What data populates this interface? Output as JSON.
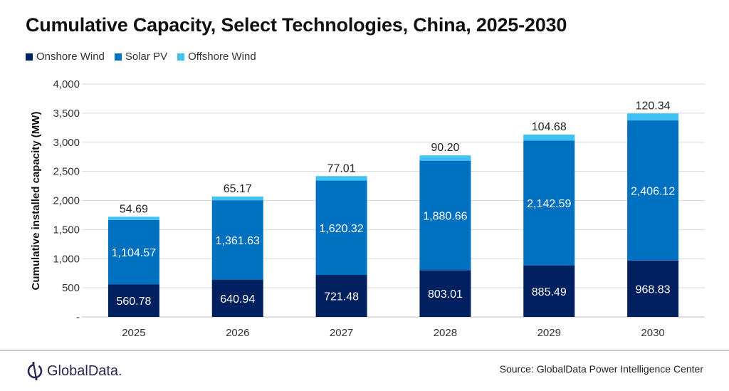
{
  "chart_data": {
    "type": "bar",
    "stacked": true,
    "title": "Cumulative Capacity, Select Technologies, China, 2025-2030",
    "xlabel": "",
    "ylabel": "Cumulative installed capacity (MW)",
    "ylim": [
      0,
      4000
    ],
    "yticks": [
      "-",
      "500",
      "1,000",
      "1,500",
      "2,000",
      "2,500",
      "3,000",
      "3,500",
      "4,000"
    ],
    "ytick_values": [
      0,
      500,
      1000,
      1500,
      2000,
      2500,
      3000,
      3500,
      4000
    ],
    "grid": true,
    "legend_position": "top-left",
    "categories": [
      "2025",
      "2026",
      "2027",
      "2028",
      "2029",
      "2030"
    ],
    "series": [
      {
        "name": "Onshore Wind",
        "color": "#002060",
        "label_color": "#ffffff",
        "values": [
          560.78,
          640.94,
          721.48,
          803.01,
          885.49,
          968.83
        ],
        "labels": [
          "560.78",
          "640.94",
          "721.48",
          "803.01",
          "885.49",
          "968.83"
        ]
      },
      {
        "name": "Solar PV",
        "color": "#0070c0",
        "label_color": "#ffffff",
        "values": [
          1104.57,
          1361.63,
          1620.32,
          1880.66,
          2142.59,
          2406.12
        ],
        "labels": [
          "1,104.57",
          "1,361.63",
          "1,620.32",
          "1,880.66",
          "2,142.59",
          "2,406.12"
        ]
      },
      {
        "name": "Offshore Wind",
        "color": "#3fc1f3",
        "label_color": "#222222",
        "values": [
          54.69,
          65.17,
          77.01,
          90.2,
          104.68,
          120.34
        ],
        "labels": [
          "54.69",
          "65.17",
          "77.01",
          "90.20",
          "104.68",
          "120.34"
        ]
      }
    ]
  },
  "footer": {
    "logo": "GlobalData.",
    "source": "Source: GlobalData Power Intelligence Center"
  }
}
